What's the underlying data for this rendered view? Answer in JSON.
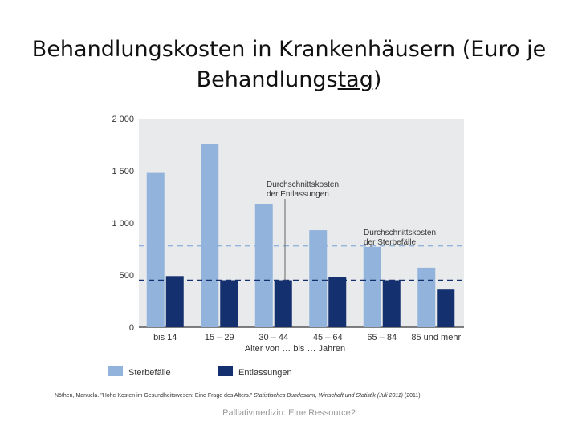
{
  "slide": {
    "title_part1": "Behandlungskosten in Krankenhäusern (Euro je",
    "title_part2_pre": "Behandlungs",
    "title_part2_underlined": "tag",
    "title_part2_post": ")",
    "footnote_text": "Nöthen, Manuela. \"Hohe Kosten im Gesundheitswesen: Eine Frage des Alters.\" ",
    "footnote_source": "Statistisches Bundesamt, Wirtschaft und Statistik (Juli 2011)",
    "footnote_year": " (2011).",
    "footer": "Palliativmedizin: Eine Ressource?"
  },
  "chart_data": {
    "type": "bar",
    "categories": [
      "bis 14",
      "15 – 29",
      "30 – 44",
      "45 – 64",
      "65 – 84",
      "85 und mehr"
    ],
    "series": [
      {
        "name": "Sterbefälle",
        "values": [
          1480,
          1760,
          1180,
          930,
          770,
          570
        ],
        "color": "#91b3dc"
      },
      {
        "name": "Entlassungen",
        "values": [
          490,
          450,
          450,
          480,
          450,
          360
        ],
        "color": "#15306f"
      }
    ],
    "yticks": [
      {
        "value": 0,
        "label": "0"
      },
      {
        "value": 500,
        "label": "500"
      },
      {
        "value": 1000,
        "label": "1 000"
      },
      {
        "value": 1500,
        "label": "1 500"
      },
      {
        "value": 2000,
        "label": "2 000"
      }
    ],
    "ylim": [
      0,
      2000
    ],
    "xlabel": "Alter von … bis … Jahren",
    "reference_lines": [
      {
        "value": 780,
        "color": "#91b3dc",
        "label": [
          "Durchschnittskosten",
          "der Sterbefälle"
        ]
      },
      {
        "value": 450,
        "color": "#15306f",
        "label": [
          "Durchschnittskosten",
          "der Entlassungen"
        ]
      }
    ],
    "plot_background": "#e9eaeb",
    "legend_position": "bottom-left",
    "grid": false
  }
}
